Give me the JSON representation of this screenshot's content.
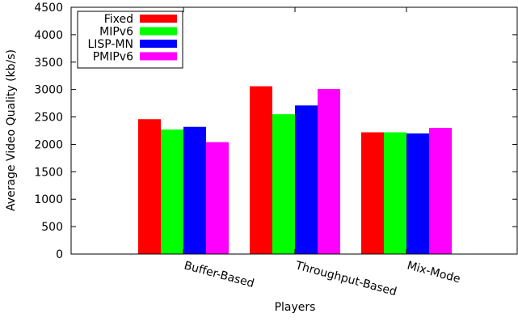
{
  "chart_data": {
    "type": "bar",
    "title": "",
    "xlabel": "Players",
    "ylabel": "Average Video Quality (kb/s)",
    "categories": [
      "Buffer-Based",
      "Throughput-Based",
      "Mix-Mode"
    ],
    "series": [
      {
        "name": "Fixed",
        "color": "#ff0000",
        "values": [
          2460,
          3060,
          2220
        ]
      },
      {
        "name": "MIPv6",
        "color": "#00ff00",
        "values": [
          2270,
          2550,
          2220
        ]
      },
      {
        "name": "LISP-MN",
        "color": "#0000ff",
        "values": [
          2320,
          2710,
          2200
        ]
      },
      {
        "name": "PMIPv6",
        "color": "#ff00ff",
        "values": [
          2040,
          3010,
          2300
        ]
      }
    ],
    "ylim": [
      0,
      4500
    ],
    "yticks": [
      0,
      500,
      1000,
      1500,
      2000,
      2500,
      3000,
      3500,
      4000,
      4500
    ],
    "grid": false,
    "legend": {
      "position": "top-left"
    }
  }
}
